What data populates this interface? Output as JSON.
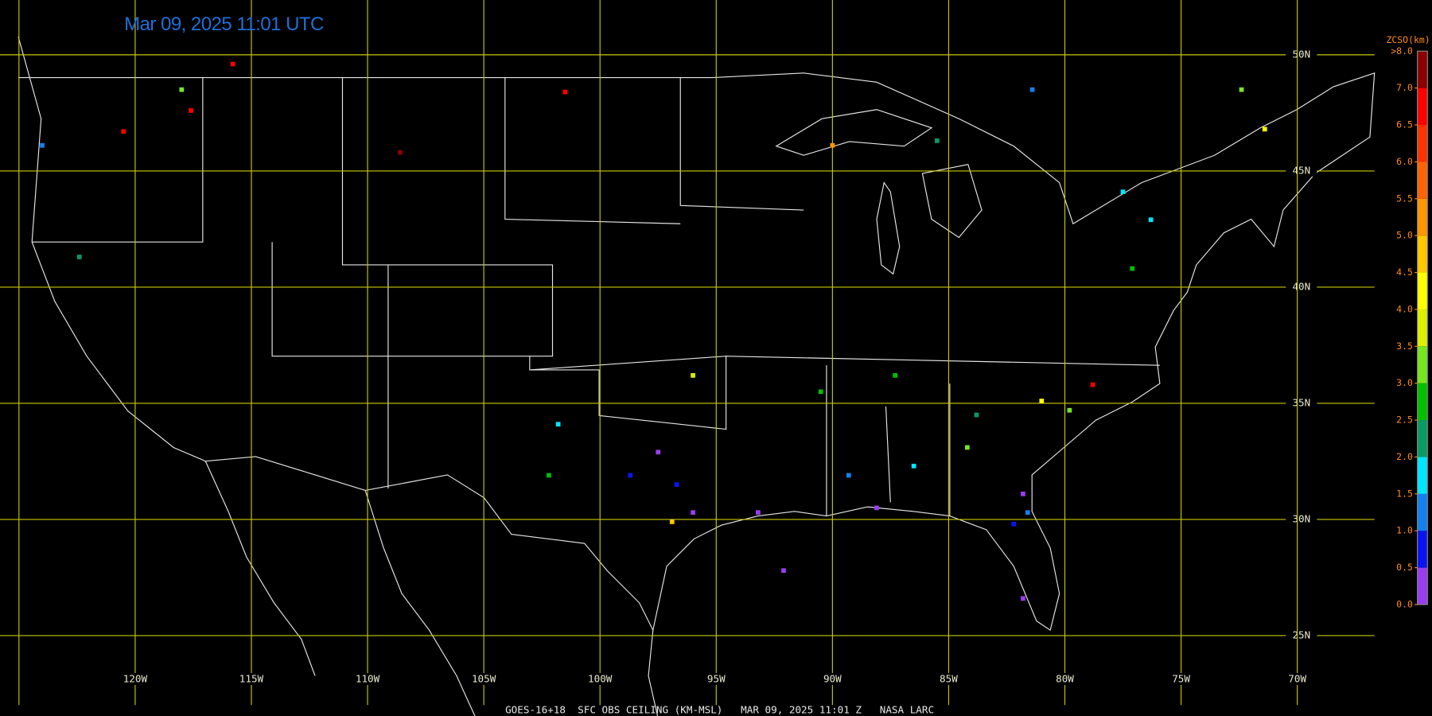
{
  "title": "Mar 09, 2025 11:01 UTC",
  "footer": "GOES-16+18  SFC OBS CEILING (KM-MSL)   MAR 09, 2025 11:01 Z   NASA LARC",
  "latitudes": [
    {
      "value": 50,
      "label": "50N"
    },
    {
      "value": 45,
      "label": "45N"
    },
    {
      "value": 40,
      "label": "40N"
    },
    {
      "value": 35,
      "label": "35N"
    },
    {
      "value": 30,
      "label": "30N"
    },
    {
      "value": 25,
      "label": "25N"
    }
  ],
  "longitudes": [
    {
      "value": -125,
      "label": null
    },
    {
      "value": -120,
      "label": "120W"
    },
    {
      "value": -115,
      "label": "115W"
    },
    {
      "value": -110,
      "label": "110W"
    },
    {
      "value": -105,
      "label": "105W"
    },
    {
      "value": -100,
      "label": "100W"
    },
    {
      "value": -95,
      "label": "95W"
    },
    {
      "value": -90,
      "label": "90W"
    },
    {
      "value": -85,
      "label": "85W"
    },
    {
      "value": -80,
      "label": "80W"
    },
    {
      "value": -75,
      "label": "75W"
    },
    {
      "value": -70,
      "label": "70W"
    }
  ],
  "colorbar": {
    "title": "ZCSO(km)",
    "top_label": ">8.0",
    "colors": [
      "#9a3cf0",
      "#0a14f0",
      "#1480f0",
      "#00e6ff",
      "#0a9a64",
      "#00c000",
      "#78e61e",
      "#dcf000",
      "#ffff00",
      "#ffc800",
      "#ff9600",
      "#ff6400",
      "#ff3200",
      "#ff0000",
      "#8c0000"
    ],
    "ticks": [
      {
        "value": 0,
        "label": "0.0"
      },
      {
        "value": 0.5,
        "label": "0.5"
      },
      {
        "value": 1,
        "label": "1.0"
      },
      {
        "value": 1.5,
        "label": "1.5"
      },
      {
        "value": 2,
        "label": "2.0"
      },
      {
        "value": 2.5,
        "label": "2.5"
      },
      {
        "value": 3,
        "label": "3.0"
      },
      {
        "value": 3.5,
        "label": "3.5"
      },
      {
        "value": 4,
        "label": "4.0"
      },
      {
        "value": 4.5,
        "label": "4.5"
      },
      {
        "value": 5,
        "label": "5.0"
      },
      {
        "value": 5.5,
        "label": "5.5"
      },
      {
        "value": 6,
        "label": "6.0"
      },
      {
        "value": 6.5,
        "label": "6.5"
      },
      {
        "value": 7,
        "label": "7.0"
      }
    ]
  },
  "stations": [
    {
      "lon": -97.5,
      "lat": 32.9,
      "ceiling": 0.3
    },
    {
      "lon": -96.0,
      "lat": 30.3,
      "ceiling": 0.3
    },
    {
      "lon": -93.2,
      "lat": 30.3,
      "ceiling": 0.3
    },
    {
      "lon": -88.1,
      "lat": 30.5,
      "ceiling": 0.3
    },
    {
      "lon": -81.8,
      "lat": 31.1,
      "ceiling": 0.3
    },
    {
      "lon": -92.1,
      "lat": 27.8,
      "ceiling": 0.3
    },
    {
      "lon": -81.8,
      "lat": 26.6,
      "ceiling": 0.3
    },
    {
      "lon": -98.7,
      "lat": 31.9,
      "ceiling": 0.7
    },
    {
      "lon": -96.7,
      "lat": 31.5,
      "ceiling": 0.7
    },
    {
      "lon": -82.2,
      "lat": 29.8,
      "ceiling": 0.7
    },
    {
      "lon": -81.6,
      "lat": 30.3,
      "ceiling": 1.2
    },
    {
      "lon": -124.0,
      "lat": 46.1,
      "ceiling": 1.2
    },
    {
      "lon": -89.3,
      "lat": 31.9,
      "ceiling": 1.2
    },
    {
      "lon": -81.4,
      "lat": 48.5,
      "ceiling": 1.2
    },
    {
      "lon": -76.3,
      "lat": 42.9,
      "ceiling": 1.7
    },
    {
      "lon": -86.5,
      "lat": 32.3,
      "ceiling": 1.7
    },
    {
      "lon": -101.8,
      "lat": 34.1,
      "ceiling": 1.7
    },
    {
      "lon": -77.5,
      "lat": 44.1,
      "ceiling": 1.7
    },
    {
      "lon": -83.8,
      "lat": 34.5,
      "ceiling": 2.2
    },
    {
      "lon": -122.4,
      "lat": 41.3,
      "ceiling": 2.2
    },
    {
      "lon": -77.1,
      "lat": 40.8,
      "ceiling": 2.7
    },
    {
      "lon": -85.5,
      "lat": 46.3,
      "ceiling": 2.2
    },
    {
      "lon": -90.5,
      "lat": 35.5,
      "ceiling": 2.7
    },
    {
      "lon": -87.3,
      "lat": 36.2,
      "ceiling": 2.7
    },
    {
      "lon": -102.2,
      "lat": 31.9,
      "ceiling": 2.7
    },
    {
      "lon": -118.0,
      "lat": 48.5,
      "ceiling": 3.2
    },
    {
      "lon": -84.2,
      "lat": 33.1,
      "ceiling": 3.2
    },
    {
      "lon": -79.8,
      "lat": 34.7,
      "ceiling": 3.2
    },
    {
      "lon": -72.4,
      "lat": 48.5,
      "ceiling": 3.2
    },
    {
      "lon": -96.0,
      "lat": 36.2,
      "ceiling": 3.7
    },
    {
      "lon": -81.0,
      "lat": 35.1,
      "ceiling": 4.2
    },
    {
      "lon": -71.4,
      "lat": 46.8,
      "ceiling": 4.2
    },
    {
      "lon": -96.9,
      "lat": 29.9,
      "ceiling": 4.7
    },
    {
      "lon": -90.0,
      "lat": 46.1,
      "ceiling": 5.2
    },
    {
      "lon": -101.5,
      "lat": 48.4,
      "ceiling": 6.7
    },
    {
      "lon": -115.8,
      "lat": 49.6,
      "ceiling": 6.7
    },
    {
      "lon": -120.5,
      "lat": 46.7,
      "ceiling": 6.7
    },
    {
      "lon": -78.8,
      "lat": 35.8,
      "ceiling": 6.7
    },
    {
      "lon": -117.6,
      "lat": 47.6,
      "ceiling": 6.7
    },
    {
      "lon": -108.6,
      "lat": 45.8,
      "ceiling": 7.5
    }
  ]
}
